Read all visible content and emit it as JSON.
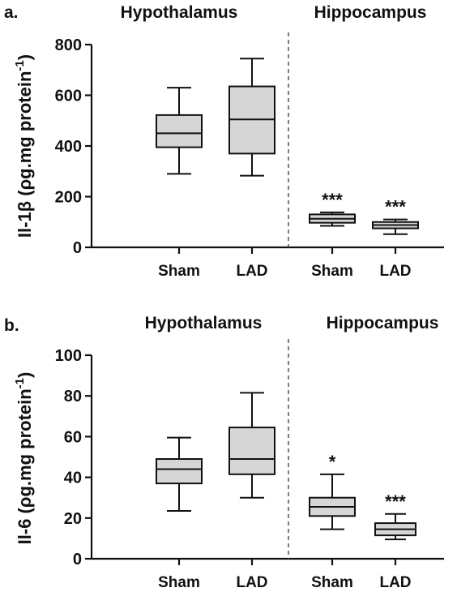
{
  "chart_data": [
    {
      "type": "box",
      "panel_label": "a.",
      "ylabel": "Il-1β (ρg.mg protein",
      "ylabel_sup": "-1",
      "ylabel_close": ")",
      "groups": [
        "Hypothalamus",
        "Hippocampus"
      ],
      "categories": [
        "Sham",
        "LAD",
        "Sham",
        "LAD"
      ],
      "ylim": [
        0,
        800
      ],
      "yticks": [
        0,
        200,
        400,
        600,
        800
      ],
      "boxes": [
        {
          "group": "Hypothalamus",
          "category": "Sham",
          "min": 290,
          "q1": 395,
          "median": 450,
          "q3": 522,
          "max": 630,
          "annotation": ""
        },
        {
          "group": "Hypothalamus",
          "category": "LAD",
          "min": 283,
          "q1": 370,
          "median": 505,
          "q3": 635,
          "max": 745,
          "annotation": ""
        },
        {
          "group": "Hippocampus",
          "category": "Sham",
          "min": 85,
          "q1": 97,
          "median": 113,
          "q3": 130,
          "max": 138,
          "annotation": "***"
        },
        {
          "group": "Hippocampus",
          "category": "LAD",
          "min": 52,
          "q1": 75,
          "median": 88,
          "q3": 100,
          "max": 110,
          "annotation": "***"
        }
      ]
    },
    {
      "type": "box",
      "panel_label": "b.",
      "ylabel": "Il-6 (ρg.mg protein",
      "ylabel_sup": "-1",
      "ylabel_close": ")",
      "groups": [
        "Hypothalamus",
        "Hippocampus"
      ],
      "categories": [
        "Sham",
        "LAD",
        "Sham",
        "LAD"
      ],
      "ylim": [
        0,
        100
      ],
      "yticks": [
        0,
        20,
        40,
        60,
        80,
        100
      ],
      "boxes": [
        {
          "group": "Hypothalamus",
          "category": "Sham",
          "min": 23.5,
          "q1": 37,
          "median": 44,
          "q3": 49,
          "max": 59.5,
          "annotation": ""
        },
        {
          "group": "Hypothalamus",
          "category": "LAD",
          "min": 30,
          "q1": 41.5,
          "median": 49,
          "q3": 64.5,
          "max": 81.5,
          "annotation": ""
        },
        {
          "group": "Hippocampus",
          "category": "Sham",
          "min": 14.5,
          "q1": 21,
          "median": 25.5,
          "q3": 30,
          "max": 41.5,
          "annotation": "*"
        },
        {
          "group": "Hippocampus",
          "category": "LAD",
          "min": 9.5,
          "q1": 11.5,
          "median": 14.5,
          "q3": 17.5,
          "max": 22,
          "annotation": "***"
        }
      ]
    }
  ],
  "colors": {
    "box_fill": "#d6d6d6",
    "stroke": "#111111",
    "divider": "#555555"
  }
}
